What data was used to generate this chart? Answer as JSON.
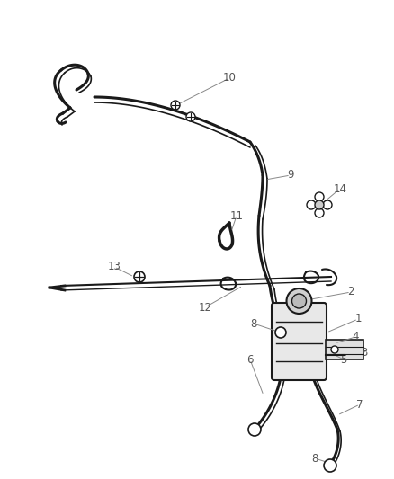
{
  "bg_color": "#ffffff",
  "line_color": "#1a1a1a",
  "label_color": "#666666",
  "fig_width": 4.38,
  "fig_height": 5.33,
  "dpi": 100,
  "lw_hose": 2.2,
  "lw_hose2": 1.2,
  "lw_detail": 1.0
}
